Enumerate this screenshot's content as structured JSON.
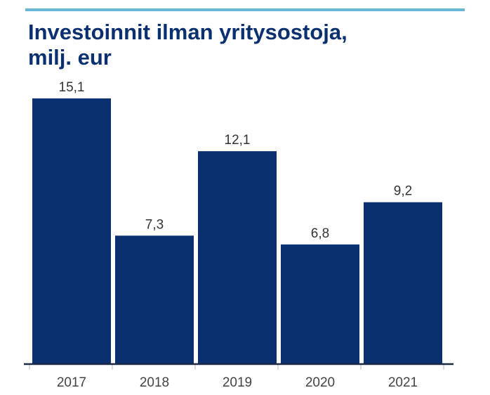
{
  "accent_color": "#6ab4d6",
  "title_color": "#0b3070",
  "bar_color": "#0b3070",
  "chart_data": {
    "type": "bar",
    "title": "Investoinnit ilman yritysostoja,",
    "subtitle": "milj. eur",
    "categories": [
      "2017",
      "2018",
      "2019",
      "2020",
      "2021"
    ],
    "values": [
      15.1,
      7.3,
      12.1,
      6.8,
      9.2
    ],
    "value_labels": [
      "15,1",
      "7,3",
      "12,1",
      "6,8",
      "9,2"
    ],
    "ylim": [
      0,
      16.3
    ],
    "grid": false,
    "legend": "none"
  }
}
